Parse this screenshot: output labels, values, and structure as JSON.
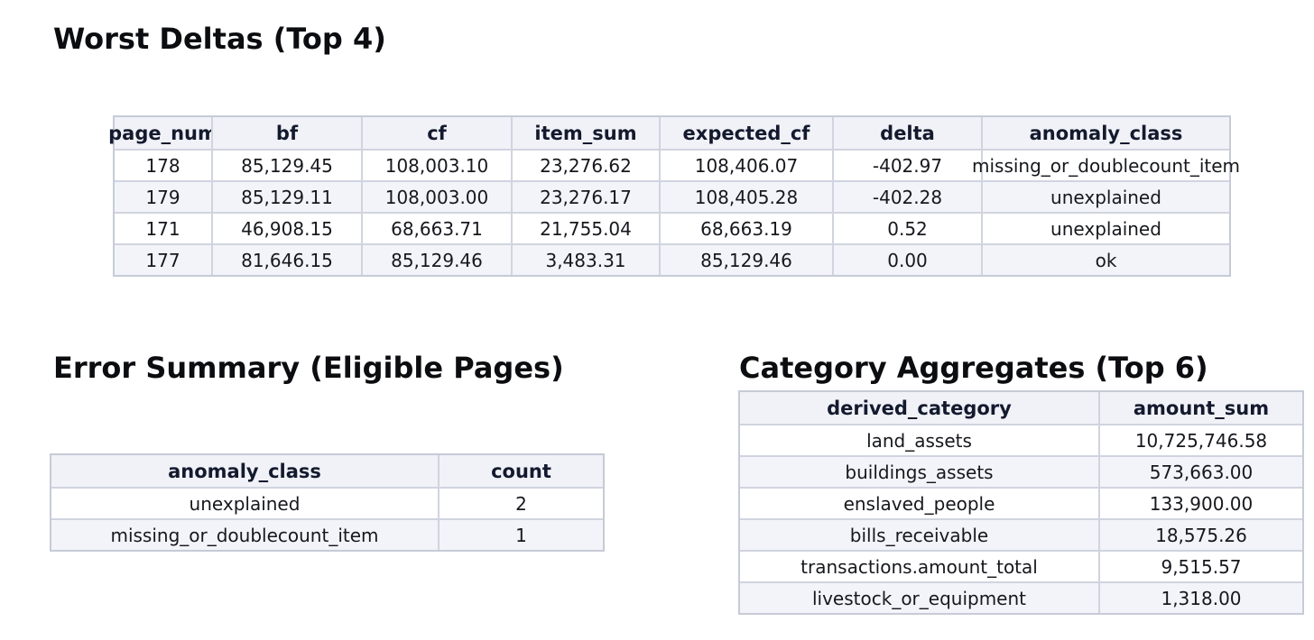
{
  "colors": {
    "page_bg": "#ffffff",
    "header_bg": "#f1f2f8",
    "stripe_bg": "#f3f4f9",
    "border_inner": "#d0d4df",
    "border_outer": "#c6cbd7",
    "header_text": "#141a2e",
    "cell_text": "#16181d",
    "title_text": "#0c0d10"
  },
  "chart_data": [
    {
      "type": "table",
      "title": "Worst Deltas (Top 4)",
      "columns": [
        "page_num",
        "bf",
        "cf",
        "item_sum",
        "expected_cf",
        "delta",
        "anomaly_class"
      ],
      "rows": [
        [
          "178",
          "85,129.45",
          "108,003.10",
          "23,276.62",
          "108,406.07",
          "-402.97",
          "missing_or_doublecount_item"
        ],
        [
          "179",
          "85,129.11",
          "108,003.00",
          "23,276.17",
          "108,405.28",
          "-402.28",
          "unexplained"
        ],
        [
          "171",
          "46,908.15",
          "68,663.71",
          "21,755.04",
          "68,663.19",
          "0.52",
          "unexplained"
        ],
        [
          "177",
          "81,646.15",
          "85,129.46",
          "3,483.31",
          "85,129.46",
          "0.00",
          "ok"
        ]
      ]
    },
    {
      "type": "table",
      "title": "Error Summary (Eligible Pages)",
      "columns": [
        "anomaly_class",
        "count"
      ],
      "rows": [
        [
          "unexplained",
          "2"
        ],
        [
          "missing_or_doublecount_item",
          "1"
        ]
      ]
    },
    {
      "type": "table",
      "title": "Category Aggregates (Top 6)",
      "columns": [
        "derived_category",
        "amount_sum"
      ],
      "rows": [
        [
          "land_assets",
          "10,725,746.58"
        ],
        [
          "buildings_assets",
          "573,663.00"
        ],
        [
          "enslaved_people",
          "133,900.00"
        ],
        [
          "bills_receivable",
          "18,575.26"
        ],
        [
          "transactions.amount_total",
          "9,515.57"
        ],
        [
          "livestock_or_equipment",
          "1,318.00"
        ]
      ]
    }
  ]
}
